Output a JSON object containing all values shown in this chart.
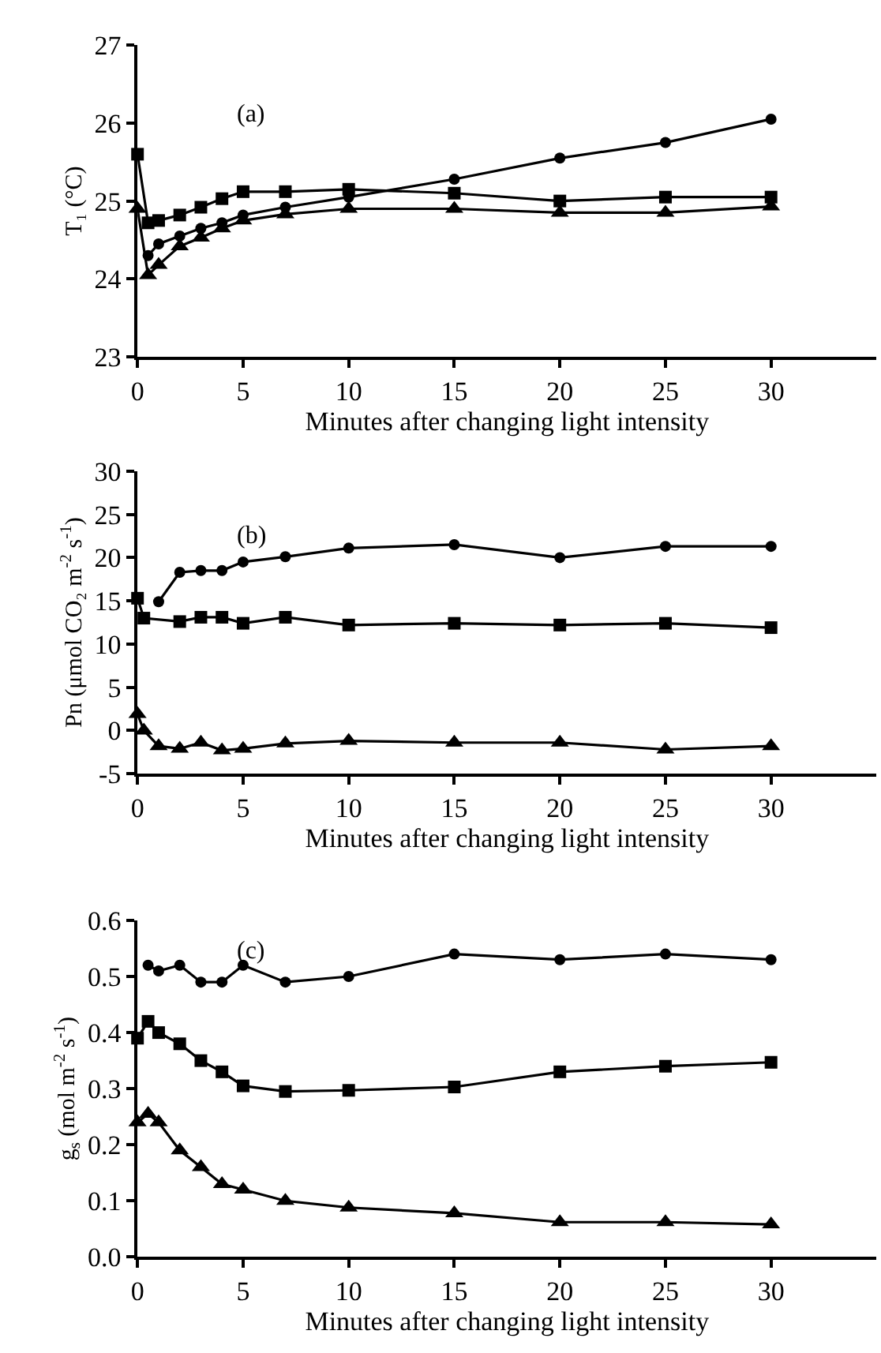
{
  "chart_data": [
    {
      "type": "line",
      "xlabel": "Minutes after changing light intensity",
      "ylabel": "T₁ (°C)",
      "annotations": [
        "(a)"
      ],
      "xlim": [
        0,
        35
      ],
      "xticks": [
        0,
        5,
        10,
        15,
        20,
        25,
        30
      ],
      "ylim": [
        23,
        27
      ],
      "yticks": [
        23,
        24,
        25,
        26,
        27
      ],
      "grid": false,
      "line_style": "solid",
      "series": [
        {
          "marker": "circle",
          "color": "#000000",
          "x": [
            0.5,
            1,
            2,
            3,
            4,
            5,
            7,
            10,
            15,
            20,
            25,
            30
          ],
          "values": [
            24.3,
            24.45,
            24.55,
            24.65,
            24.72,
            24.82,
            24.92,
            25.05,
            25.28,
            25.55,
            25.75,
            26.05
          ]
        },
        {
          "marker": "square",
          "color": "#000000",
          "x": [
            0,
            0.5,
            1,
            2,
            3,
            4,
            5,
            7,
            10,
            15,
            20,
            25,
            30
          ],
          "values": [
            25.6,
            24.72,
            24.75,
            24.82,
            24.92,
            25.03,
            25.12,
            25.12,
            25.15,
            25.1,
            25.0,
            25.05,
            25.05
          ]
        },
        {
          "marker": "triangle",
          "color": "#000000",
          "x": [
            0,
            0.5,
            1,
            2,
            3,
            4,
            5,
            7,
            10,
            15,
            20,
            25,
            30
          ],
          "values": [
            24.9,
            24.05,
            24.18,
            24.42,
            24.53,
            24.65,
            24.75,
            24.83,
            24.9,
            24.9,
            24.85,
            24.85,
            24.93
          ]
        }
      ]
    },
    {
      "type": "line",
      "xlabel": "Minutes after changing light intensity",
      "ylabel": "Pn (μmol CO₂ m$^{-2}$ s$^{-1}$)",
      "annotations": [
        "(b)"
      ],
      "xlim": [
        0,
        35
      ],
      "xticks": [
        0,
        5,
        10,
        15,
        20,
        25,
        30
      ],
      "ylim": [
        -5,
        30
      ],
      "yticks": [
        -5,
        0,
        5,
        10,
        15,
        20,
        25,
        30
      ],
      "grid": false,
      "line_style": "solid",
      "series": [
        {
          "marker": "circle",
          "color": "#000000",
          "x": [
            1,
            2,
            3,
            4,
            5,
            7,
            10,
            15,
            20,
            25,
            30
          ],
          "values": [
            14.9,
            18.3,
            18.5,
            18.5,
            19.5,
            20.1,
            21.1,
            21.5,
            20.0,
            21.3,
            21.3
          ]
        },
        {
          "marker": "square",
          "color": "#000000",
          "x": [
            0,
            0.3,
            2,
            3,
            4,
            5,
            7,
            10,
            15,
            20,
            25,
            30
          ],
          "values": [
            15.3,
            13.0,
            12.6,
            13.1,
            13.1,
            12.4,
            13.1,
            12.2,
            12.4,
            12.2,
            12.4,
            11.9
          ]
        },
        {
          "marker": "triangle",
          "color": "#000000",
          "x": [
            0,
            0.3,
            1,
            2,
            3,
            4,
            5,
            7,
            10,
            15,
            20,
            25,
            30
          ],
          "values": [
            1.9,
            0.0,
            -1.8,
            -2.1,
            -1.4,
            -2.3,
            -2.1,
            -1.5,
            -1.2,
            -1.4,
            -1.4,
            -2.2,
            -1.8
          ]
        }
      ]
    },
    {
      "type": "line",
      "xlabel": "Minutes after changing light intensity",
      "ylabel": "g$_{s}$ (mol m$^{-2}$ s$^{-1}$)",
      "annotations": [
        "(c)"
      ],
      "xlim": [
        0,
        35
      ],
      "xticks": [
        0,
        5,
        10,
        15,
        20,
        25,
        30
      ],
      "ylim": [
        0,
        0.6
      ],
      "yticks": [
        {
          "value": 0,
          "label": "0.0"
        },
        0.1,
        0.2,
        0.3,
        0.4,
        0.5,
        0.6
      ],
      "grid": false,
      "line_style": "solid",
      "series": [
        {
          "marker": "circle",
          "color": "#000000",
          "x": [
            0.5,
            1,
            2,
            3,
            4,
            5,
            7,
            10,
            15,
            20,
            25,
            30
          ],
          "values": [
            0.52,
            0.51,
            0.52,
            0.49,
            0.49,
            0.52,
            0.49,
            0.5,
            0.54,
            0.53,
            0.54,
            0.53
          ]
        },
        {
          "marker": "square",
          "color": "#000000",
          "x": [
            0,
            0.5,
            1,
            2,
            3,
            4,
            5,
            7,
            10,
            15,
            20,
            25,
            30
          ],
          "values": [
            0.39,
            0.42,
            0.4,
            0.38,
            0.35,
            0.33,
            0.305,
            0.295,
            0.297,
            0.303,
            0.33,
            0.34,
            0.347
          ]
        },
        {
          "marker": "triangle",
          "color": "#000000",
          "x": [
            0,
            0.5,
            1,
            2,
            3,
            4,
            5,
            7,
            10,
            15,
            20,
            25,
            30
          ],
          "values": [
            0.24,
            0.255,
            0.24,
            0.19,
            0.16,
            0.13,
            0.12,
            0.1,
            0.088,
            0.078,
            0.062,
            0.062,
            0.058
          ]
        }
      ]
    }
  ]
}
